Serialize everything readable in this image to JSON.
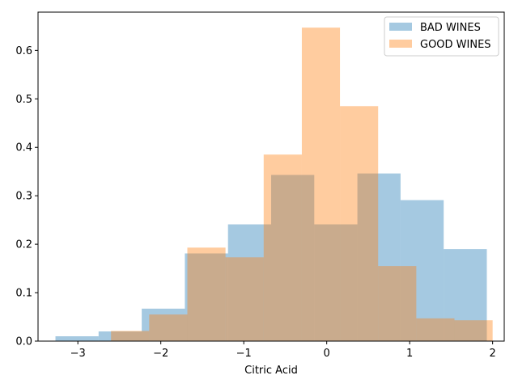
{
  "chart_data": {
    "type": "histogram",
    "title": "",
    "xlabel": "Citric Acid",
    "ylabel": "",
    "xlim": [
      -3.48,
      2.14
    ],
    "ylim": [
      0,
      0.679
    ],
    "xticks": [
      -3,
      -2,
      -1,
      0,
      1,
      2
    ],
    "yticks": [
      0.0,
      0.1,
      0.2,
      0.3,
      0.4,
      0.5,
      0.6
    ],
    "grid": false,
    "legend_position": "top-right",
    "series": [
      {
        "name": "BAD WINES",
        "color": "#1f77b4",
        "opacity": 0.4,
        "bin_edges": [
          -3.27,
          -2.75,
          -2.23,
          -1.71,
          -1.19,
          -0.67,
          -0.15,
          0.37,
          0.89,
          1.41,
          1.93
        ],
        "values": [
          0.01,
          0.02,
          0.067,
          0.181,
          0.241,
          0.343,
          0.241,
          0.346,
          0.291,
          0.19
        ]
      },
      {
        "name": "GOOD WINES",
        "color": "#ff7f0e",
        "opacity": 0.4,
        "bin_edges": [
          -2.6,
          -2.14,
          -1.68,
          -1.22,
          -0.76,
          -0.3,
          0.16,
          0.62,
          1.08,
          1.54,
          2.0
        ],
        "values": [
          0.021,
          0.055,
          0.193,
          0.173,
          0.385,
          0.647,
          0.485,
          0.155,
          0.047,
          0.043
        ]
      }
    ]
  }
}
